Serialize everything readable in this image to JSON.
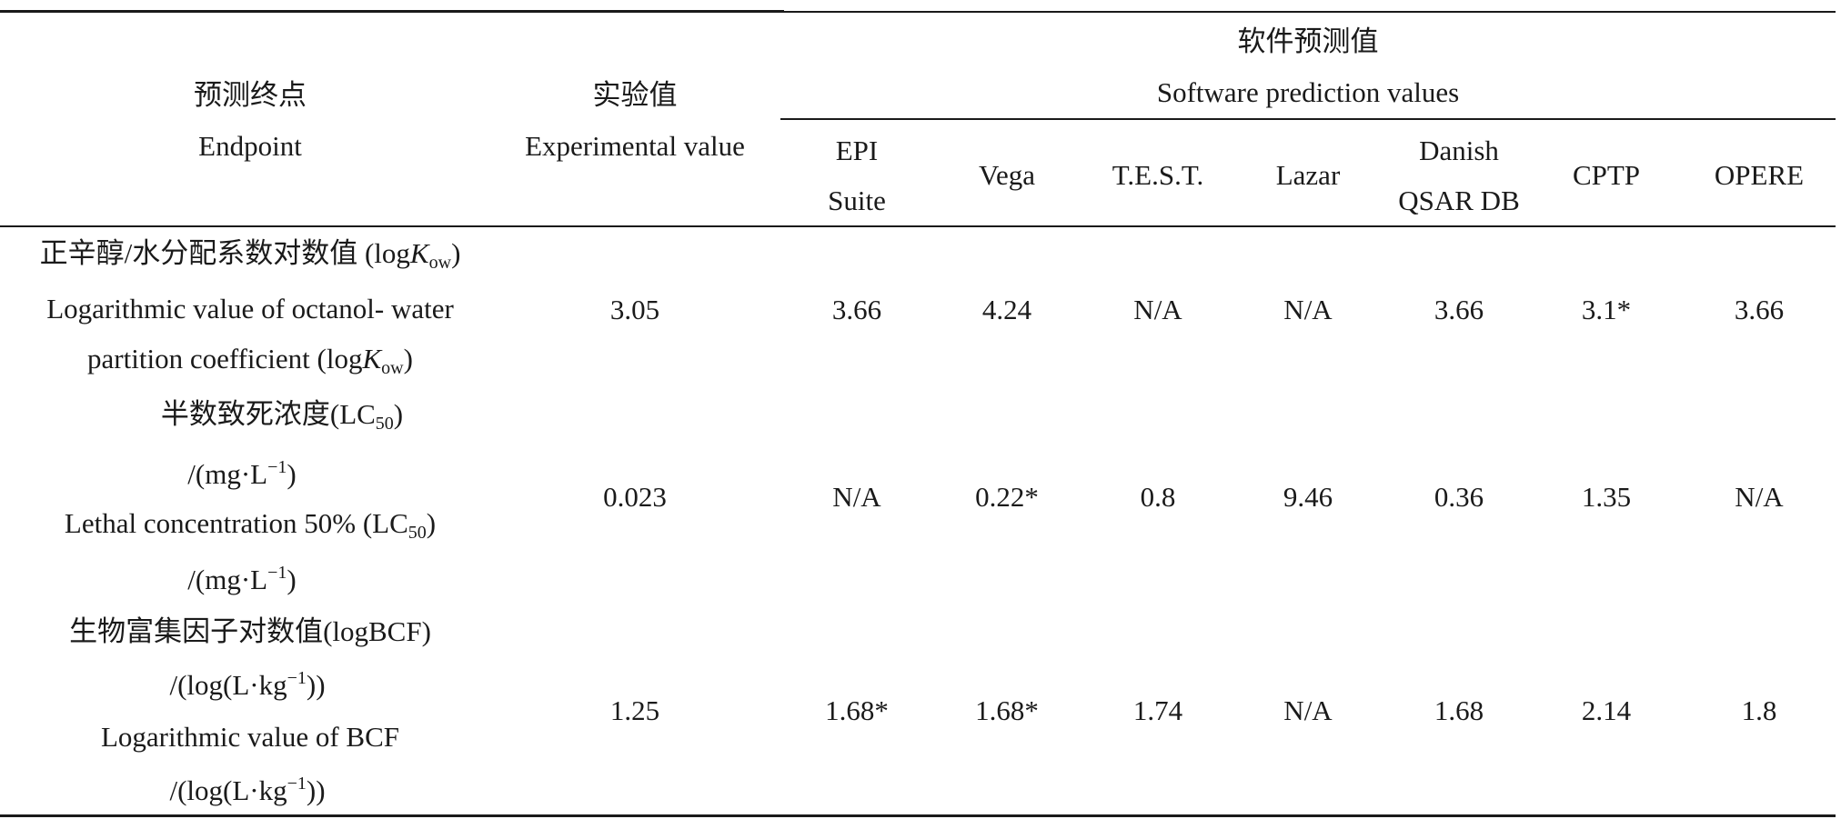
{
  "header": {
    "endpoint_cn": "预测终点",
    "endpoint_en": "Endpoint",
    "experimental_cn": "实验值",
    "experimental_en": "Experimental value",
    "software_cn": "软件预测值",
    "software_en": "Software prediction values",
    "software_columns": [
      {
        "line1": "EPI",
        "line2": "Suite"
      },
      {
        "line1": "Vega",
        "line2": ""
      },
      {
        "line1": "T.E.S.T.",
        "line2": ""
      },
      {
        "line1": "Lazar",
        "line2": ""
      },
      {
        "line1": "Danish",
        "line2": "QSAR DB"
      },
      {
        "line1": "CPTP",
        "line2": ""
      },
      {
        "line1": "OPERE",
        "line2": ""
      }
    ]
  },
  "rows": [
    {
      "label": {
        "cn": {
          "text": "正辛醇/水分配系数对数值 (log",
          "italic": "K",
          "sub": "ow",
          "close": ")"
        },
        "en1": "Logarithmic value of octanol- water",
        "en2": {
          "text": "partition coefficient (log",
          "italic": "K",
          "sub": "ow",
          "close": ")"
        }
      },
      "experimental": "3.05",
      "values": [
        "3.66",
        "4.24",
        "N/A",
        "N/A",
        "3.66",
        "3.1*",
        "3.66"
      ]
    },
    {
      "label": {
        "cn": {
          "text": "半数致死浓度(LC",
          "sub": "50",
          "close": ")"
        },
        "unit1": {
          "text": "/(mg·L",
          "sup": "−1",
          "close": ")"
        },
        "en": {
          "text": "Lethal concentration 50% (LC",
          "sub": "50",
          "close": ")"
        },
        "unit2": {
          "text": "/(mg·L",
          "sup": "−1",
          "close": ")"
        }
      },
      "experimental": "0.023",
      "values": [
        "N/A",
        "0.22*",
        "0.8",
        "9.46",
        "0.36",
        "1.35",
        "N/A"
      ]
    },
    {
      "label": {
        "cn": "生物富集因子对数值(logBCF)",
        "unit1": {
          "text": "/(log(L·kg",
          "sup": "−1",
          "close": "))"
        },
        "en": "Logarithmic value of BCF",
        "unit2": {
          "text": "/(log(L·kg",
          "sup": "−1",
          "close": "))"
        }
      },
      "experimental": "1.25",
      "values": [
        "1.68*",
        "1.68*",
        "1.74",
        "N/A",
        "1.68",
        "2.14",
        "1.8"
      ]
    }
  ]
}
